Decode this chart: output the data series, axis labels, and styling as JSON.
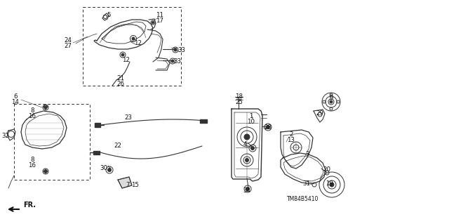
{
  "bg": "#ffffff",
  "lc": "#333333",
  "tc": "#111111",
  "fig_w": 6.4,
  "fig_h": 3.19,
  "dpi": 100,
  "watermark": "TM84B5410",
  "labels": [
    [
      "5",
      155,
      22
    ],
    [
      "24",
      97,
      57
    ],
    [
      "27",
      97,
      65
    ],
    [
      "11",
      228,
      22
    ],
    [
      "17",
      228,
      30
    ],
    [
      "12",
      197,
      62
    ],
    [
      "12",
      180,
      85
    ],
    [
      "21",
      172,
      112
    ],
    [
      "26",
      172,
      120
    ],
    [
      "33",
      259,
      72
    ],
    [
      "33",
      253,
      88
    ],
    [
      "6",
      22,
      138
    ],
    [
      "14",
      22,
      146
    ],
    [
      "8",
      46,
      158
    ],
    [
      "16",
      46,
      166
    ],
    [
      "32",
      8,
      193
    ],
    [
      "8",
      46,
      228
    ],
    [
      "16",
      46,
      236
    ],
    [
      "30",
      148,
      240
    ],
    [
      "23",
      183,
      168
    ],
    [
      "22",
      168,
      208
    ],
    [
      "7",
      182,
      263
    ],
    [
      "15",
      193,
      263
    ],
    [
      "18",
      341,
      138
    ],
    [
      "25",
      341,
      146
    ],
    [
      "1",
      358,
      165
    ],
    [
      "10",
      358,
      173
    ],
    [
      "28",
      382,
      181
    ],
    [
      "4",
      349,
      205
    ],
    [
      "34",
      352,
      272
    ],
    [
      "2",
      415,
      192
    ],
    [
      "13",
      415,
      200
    ],
    [
      "29",
      456,
      162
    ],
    [
      "9",
      472,
      140
    ],
    [
      "3",
      438,
      220
    ],
    [
      "20",
      466,
      242
    ],
    [
      "19",
      469,
      262
    ],
    [
      "31",
      437,
      262
    ]
  ]
}
